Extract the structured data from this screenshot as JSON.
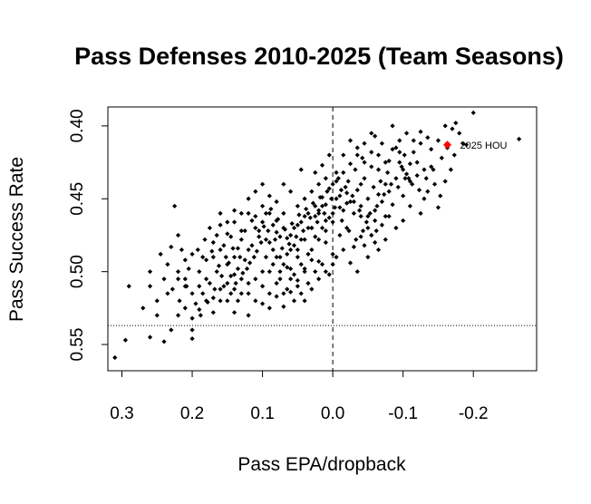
{
  "chart_data": {
    "type": "scatter",
    "title": "Pass Defenses 2010-2025 (Team Seasons)",
    "xlabel": "Pass EPA/dropback",
    "ylabel": "Pass Success Rate",
    "xlim": [
      0.32,
      -0.29
    ],
    "ylim": [
      0.568,
      0.387
    ],
    "xticks": [
      {
        "value": 0.3,
        "label": "0.3"
      },
      {
        "value": 0.2,
        "label": "0.2"
      },
      {
        "value": 0.1,
        "label": "0.1"
      },
      {
        "value": 0.0,
        "label": "0.0"
      },
      {
        "value": -0.1,
        "label": "-0.1"
      },
      {
        "value": -0.2,
        "label": "-0.2"
      }
    ],
    "yticks": [
      {
        "value": 0.4,
        "label": "0.40"
      },
      {
        "value": 0.45,
        "label": "0.45"
      },
      {
        "value": 0.5,
        "label": "0.50"
      },
      {
        "value": 0.55,
        "label": "0.55"
      }
    ],
    "reference_lines": {
      "vertical_x": 0.0,
      "horizontal_y": 0.537
    },
    "points": [
      [
        -0.2,
        0.391
      ],
      [
        -0.265,
        0.409
      ],
      [
        -0.175,
        0.398
      ],
      [
        -0.19,
        0.413
      ],
      [
        -0.14,
        0.416
      ],
      [
        -0.125,
        0.404
      ],
      [
        -0.115,
        0.41
      ],
      [
        -0.102,
        0.42
      ],
      [
        -0.13,
        0.43
      ],
      [
        -0.108,
        0.436
      ],
      [
        -0.098,
        0.428
      ],
      [
        -0.09,
        0.415
      ],
      [
        -0.085,
        0.4
      ],
      [
        -0.07,
        0.412
      ],
      [
        -0.06,
        0.407
      ],
      [
        -0.055,
        0.418
      ],
      [
        -0.045,
        0.425
      ],
      [
        -0.035,
        0.415
      ],
      [
        -0.025,
        0.41
      ],
      [
        -0.015,
        0.42
      ],
      [
        -0.005,
        0.432
      ],
      [
        0.005,
        0.42
      ],
      [
        0.015,
        0.427
      ],
      [
        0.025,
        0.432
      ],
      [
        0.045,
        0.43
      ],
      [
        -0.075,
        0.44
      ],
      [
        -0.065,
        0.447
      ],
      [
        -0.05,
        0.45
      ],
      [
        -0.04,
        0.44
      ],
      [
        -0.03,
        0.46
      ],
      [
        -0.02,
        0.453
      ],
      [
        -0.01,
        0.448
      ],
      [
        0.0,
        0.46
      ],
      [
        0.01,
        0.465
      ],
      [
        0.02,
        0.458
      ],
      [
        0.03,
        0.47
      ],
      [
        0.04,
        0.462
      ],
      [
        0.05,
        0.468
      ],
      [
        0.06,
        0.475
      ],
      [
        0.07,
        0.46
      ],
      [
        0.08,
        0.473
      ],
      [
        0.09,
        0.48
      ],
      [
        0.1,
        0.466
      ],
      [
        0.11,
        0.47
      ],
      [
        0.12,
        0.485
      ],
      [
        0.13,
        0.478
      ],
      [
        0.14,
        0.49
      ],
      [
        0.15,
        0.495
      ],
      [
        0.16,
        0.485
      ],
      [
        0.17,
        0.48
      ],
      [
        0.18,
        0.492
      ],
      [
        0.19,
        0.5
      ],
      [
        0.2,
        0.488
      ],
      [
        0.21,
        0.505
      ],
      [
        0.22,
        0.475
      ],
      [
        0.225,
        0.455
      ],
      [
        0.24,
        0.505
      ],
      [
        0.25,
        0.52
      ],
      [
        0.26,
        0.51
      ],
      [
        0.25,
        0.53
      ],
      [
        0.29,
        0.51
      ],
      [
        0.295,
        0.547
      ],
      [
        0.31,
        0.559
      ],
      [
        0.2,
        0.546
      ],
      [
        0.2,
        0.54
      ],
      [
        0.17,
        0.528
      ],
      [
        0.15,
        0.52
      ],
      [
        0.14,
        0.512
      ],
      [
        0.13,
        0.505
      ],
      [
        0.12,
        0.515
      ],
      [
        0.11,
        0.52
      ],
      [
        0.1,
        0.51
      ],
      [
        0.09,
        0.5
      ],
      [
        0.08,
        0.49
      ],
      [
        0.07,
        0.495
      ],
      [
        0.06,
        0.505
      ],
      [
        0.05,
        0.49
      ],
      [
        0.04,
        0.5
      ],
      [
        0.03,
        0.485
      ],
      [
        0.02,
        0.493
      ],
      [
        0.01,
        0.48
      ],
      [
        0.0,
        0.488
      ],
      [
        -0.01,
        0.475
      ],
      [
        -0.02,
        0.47
      ],
      [
        -0.03,
        0.483
      ],
      [
        -0.04,
        0.476
      ],
      [
        -0.05,
        0.49
      ],
      [
        -0.06,
        0.465
      ],
      [
        -0.07,
        0.452
      ],
      [
        -0.08,
        0.445
      ],
      [
        -0.09,
        0.436
      ],
      [
        -0.1,
        0.43
      ],
      [
        -0.11,
        0.438
      ],
      [
        -0.12,
        0.425
      ],
      [
        -0.135,
        0.445
      ],
      [
        -0.15,
        0.456
      ],
      [
        0.06,
        0.445
      ],
      [
        0.07,
        0.44
      ],
      [
        0.08,
        0.452
      ],
      [
        0.09,
        0.448
      ],
      [
        0.1,
        0.455
      ],
      [
        0.11,
        0.462
      ],
      [
        0.12,
        0.45
      ],
      [
        0.13,
        0.472
      ],
      [
        0.14,
        0.466
      ],
      [
        0.15,
        0.474
      ],
      [
        0.16,
        0.46
      ],
      [
        0.05,
        0.455
      ],
      [
        0.04,
        0.45
      ],
      [
        0.03,
        0.445
      ],
      [
        0.02,
        0.44
      ],
      [
        0.01,
        0.436
      ],
      [
        0.0,
        0.44
      ],
      [
        -0.005,
        0.45
      ],
      [
        0.015,
        0.455
      ],
      [
        0.025,
        0.462
      ],
      [
        0.035,
        0.47
      ],
      [
        0.045,
        0.478
      ],
      [
        0.055,
        0.482
      ],
      [
        0.065,
        0.488
      ],
      [
        0.075,
        0.476
      ],
      [
        0.085,
        0.468
      ],
      [
        0.095,
        0.46
      ],
      [
        0.105,
        0.476
      ],
      [
        0.115,
        0.482
      ],
      [
        0.125,
        0.492
      ],
      [
        0.135,
        0.498
      ],
      [
        0.145,
        0.503
      ],
      [
        0.155,
        0.51
      ],
      [
        0.165,
        0.5
      ],
      [
        0.175,
        0.508
      ],
      [
        0.185,
        0.515
      ],
      [
        0.195,
        0.522
      ],
      [
        0.205,
        0.498
      ],
      [
        0.215,
        0.485
      ],
      [
        0.235,
        0.495
      ],
      [
        0.245,
        0.488
      ],
      [
        0.185,
        0.49
      ],
      [
        0.175,
        0.47
      ],
      [
        0.165,
        0.475
      ],
      [
        0.155,
        0.482
      ],
      [
        0.145,
        0.476
      ],
      [
        0.135,
        0.484
      ],
      [
        0.125,
        0.472
      ],
      [
        0.115,
        0.465
      ],
      [
        0.105,
        0.472
      ],
      [
        0.095,
        0.478
      ],
      [
        0.085,
        0.485
      ],
      [
        0.075,
        0.49
      ],
      [
        0.065,
        0.497
      ],
      [
        0.055,
        0.502
      ],
      [
        0.045,
        0.495
      ],
      [
        0.035,
        0.488
      ],
      [
        0.025,
        0.476
      ],
      [
        0.015,
        0.47
      ],
      [
        0.005,
        0.463
      ],
      [
        -0.015,
        0.458
      ],
      [
        -0.025,
        0.452
      ],
      [
        -0.035,
        0.444
      ],
      [
        -0.045,
        0.436
      ],
      [
        -0.055,
        0.428
      ],
      [
        -0.065,
        0.42
      ],
      [
        -0.08,
        0.424
      ],
      [
        -0.095,
        0.418
      ],
      [
        -0.11,
        0.426
      ],
      [
        -0.12,
        0.434
      ],
      [
        -0.14,
        0.428
      ],
      [
        -0.155,
        0.422
      ],
      [
        -0.085,
        0.454
      ],
      [
        -0.075,
        0.462
      ],
      [
        -0.062,
        0.472
      ],
      [
        -0.048,
        0.466
      ],
      [
        -0.038,
        0.458
      ],
      [
        -0.028,
        0.448
      ],
      [
        -0.018,
        0.442
      ],
      [
        -0.008,
        0.436
      ],
      [
        0.008,
        0.445
      ],
      [
        0.018,
        0.449
      ],
      [
        0.028,
        0.453
      ],
      [
        0.038,
        0.457
      ],
      [
        0.048,
        0.461
      ],
      [
        0.058,
        0.467
      ],
      [
        0.068,
        0.471
      ],
      [
        0.078,
        0.464
      ],
      [
        0.088,
        0.457
      ],
      [
        0.098,
        0.469
      ],
      [
        0.108,
        0.486
      ],
      [
        0.118,
        0.494
      ],
      [
        0.128,
        0.501
      ],
      [
        0.138,
        0.508
      ],
      [
        0.148,
        0.494
      ],
      [
        0.158,
        0.503
      ],
      [
        0.168,
        0.512
      ],
      [
        0.178,
        0.521
      ],
      [
        0.188,
        0.53
      ],
      [
        0.208,
        0.51
      ],
      [
        0.218,
        0.52
      ],
      [
        0.228,
        0.512
      ],
      [
        0.075,
        0.505
      ],
      [
        0.065,
        0.512
      ],
      [
        0.055,
        0.52
      ],
      [
        0.045,
        0.515
      ],
      [
        0.035,
        0.508
      ],
      [
        0.025,
        0.5
      ],
      [
        0.015,
        0.495
      ],
      [
        0.005,
        0.502
      ],
      [
        -0.005,
        0.49
      ],
      [
        -0.015,
        0.485
      ],
      [
        -0.025,
        0.494
      ],
      [
        -0.035,
        0.5
      ],
      [
        -0.045,
        0.482
      ],
      [
        -0.055,
        0.475
      ],
      [
        -0.065,
        0.485
      ],
      [
        -0.075,
        0.478
      ],
      [
        -0.1,
        0.448
      ],
      [
        -0.11,
        0.455
      ],
      [
        -0.125,
        0.46
      ],
      [
        -0.13,
        0.45
      ],
      [
        -0.145,
        0.44
      ],
      [
        -0.16,
        0.438
      ],
      [
        -0.168,
        0.43
      ],
      [
        -0.18,
        0.405
      ],
      [
        -0.105,
        0.405
      ],
      [
        -0.095,
        0.41
      ],
      [
        -0.078,
        0.432
      ],
      [
        -0.068,
        0.438
      ],
      [
        -0.058,
        0.442
      ],
      [
        -0.042,
        0.422
      ],
      [
        -0.032,
        0.43
      ],
      [
        -0.022,
        0.438
      ],
      [
        -0.012,
        0.444
      ],
      [
        0.002,
        0.45
      ],
      [
        0.012,
        0.46
      ],
      [
        0.022,
        0.466
      ],
      [
        0.032,
        0.463
      ],
      [
        0.042,
        0.472
      ],
      [
        0.052,
        0.476
      ],
      [
        0.062,
        0.481
      ],
      [
        0.072,
        0.484
      ],
      [
        0.082,
        0.478
      ],
      [
        0.092,
        0.472
      ],
      [
        0.102,
        0.48
      ],
      [
        0.112,
        0.49
      ],
      [
        0.122,
        0.498
      ],
      [
        0.132,
        0.49
      ],
      [
        0.142,
        0.484
      ],
      [
        0.152,
        0.49
      ],
      [
        0.162,
        0.496
      ],
      [
        0.172,
        0.486
      ],
      [
        0.182,
        0.478
      ],
      [
        0.192,
        0.485
      ],
      [
        0.21,
        0.492
      ],
      [
        0.22,
        0.5
      ],
      [
        0.23,
        0.483
      ],
      [
        0.18,
        0.505
      ],
      [
        0.16,
        0.52
      ],
      [
        0.14,
        0.528
      ],
      [
        0.12,
        0.53
      ],
      [
        0.1,
        0.522
      ],
      [
        0.09,
        0.515
      ],
      [
        0.08,
        0.508
      ],
      [
        0.07,
        0.515
      ],
      [
        0.06,
        0.498
      ],
      [
        0.05,
        0.485
      ],
      [
        0.04,
        0.478
      ],
      [
        0.03,
        0.47
      ],
      [
        0.02,
        0.46
      ],
      [
        0.01,
        0.454
      ],
      [
        -0.003,
        0.456
      ],
      [
        -0.013,
        0.465
      ],
      [
        -0.023,
        0.472
      ],
      [
        -0.033,
        0.478
      ],
      [
        -0.043,
        0.472
      ],
      [
        -0.053,
        0.46
      ],
      [
        -0.063,
        0.455
      ],
      [
        -0.073,
        0.447
      ],
      [
        -0.083,
        0.44
      ],
      [
        -0.093,
        0.442
      ],
      [
        -0.103,
        0.436
      ],
      [
        -0.113,
        0.44
      ],
      [
        -0.123,
        0.444
      ],
      [
        -0.133,
        0.436
      ],
      [
        -0.143,
        0.43
      ],
      [
        -0.153,
        0.448
      ],
      [
        -0.163,
        0.415
      ],
      [
        -0.173,
        0.42
      ],
      [
        -0.185,
        0.412
      ],
      [
        -0.1,
        0.465
      ],
      [
        -0.09,
        0.47
      ],
      [
        -0.08,
        0.462
      ],
      [
        -0.07,
        0.468
      ],
      [
        -0.06,
        0.458
      ],
      [
        -0.05,
        0.462
      ],
      [
        -0.04,
        0.455
      ],
      [
        0.0,
        0.495
      ],
      [
        0.01,
        0.5
      ],
      [
        0.02,
        0.505
      ],
      [
        0.03,
        0.512
      ],
      [
        0.04,
        0.52
      ],
      [
        0.05,
        0.51
      ],
      [
        0.06,
        0.485
      ],
      [
        0.07,
        0.47
      ],
      [
        0.08,
        0.465
      ],
      [
        0.09,
        0.46
      ],
      [
        0.1,
        0.44
      ],
      [
        0.11,
        0.445
      ],
      [
        0.12,
        0.46
      ],
      [
        0.13,
        0.46
      ],
      [
        0.14,
        0.458
      ],
      [
        0.15,
        0.466
      ],
      [
        0.16,
        0.468
      ],
      [
        0.17,
        0.49
      ],
      [
        0.19,
        0.51
      ],
      [
        0.2,
        0.515
      ],
      [
        0.21,
        0.525
      ],
      [
        0.22,
        0.53
      ],
      [
        0.235,
        0.515
      ],
      [
        0.26,
        0.5
      ],
      [
        0.23,
        0.54
      ],
      [
        0.24,
        0.548
      ],
      [
        0.26,
        0.545
      ],
      [
        0.27,
        0.525
      ],
      [
        0.145,
        0.515
      ],
      [
        0.135,
        0.52
      ],
      [
        0.095,
        0.49
      ],
      [
        0.085,
        0.495
      ],
      [
        0.075,
        0.5
      ],
      [
        0.065,
        0.477
      ],
      [
        0.055,
        0.47
      ],
      [
        0.045,
        0.466
      ],
      [
        0.035,
        0.46
      ],
      [
        0.025,
        0.455
      ],
      [
        0.015,
        0.449
      ],
      [
        0.005,
        0.443
      ],
      [
        -0.005,
        0.438
      ],
      [
        -0.015,
        0.432
      ],
      [
        -0.025,
        0.426
      ],
      [
        -0.035,
        0.42
      ],
      [
        -0.045,
        0.412
      ],
      [
        -0.055,
        0.405
      ],
      [
        -0.065,
        0.43
      ],
      [
        -0.075,
        0.425
      ],
      [
        -0.085,
        0.416
      ],
      [
        -0.095,
        0.425
      ],
      [
        -0.105,
        0.433
      ],
      [
        -0.115,
        0.418
      ],
      [
        -0.125,
        0.412
      ],
      [
        -0.135,
        0.408
      ],
      [
        -0.15,
        0.41
      ],
      [
        -0.16,
        0.4
      ],
      [
        -0.17,
        0.402
      ],
      [
        -0.06,
        0.48
      ],
      [
        -0.05,
        0.47
      ],
      [
        -0.04,
        0.462
      ],
      [
        -0.03,
        0.452
      ],
      [
        -0.02,
        0.446
      ],
      [
        -0.01,
        0.456
      ],
      [
        0.0,
        0.466
      ],
      [
        0.01,
        0.472
      ],
      [
        0.02,
        0.478
      ],
      [
        0.03,
        0.492
      ],
      [
        0.04,
        0.498
      ],
      [
        0.05,
        0.506
      ],
      [
        0.06,
        0.514
      ],
      [
        0.07,
        0.524
      ],
      [
        0.08,
        0.517
      ],
      [
        0.09,
        0.525
      ],
      [
        0.1,
        0.5
      ],
      [
        0.11,
        0.505
      ],
      [
        0.12,
        0.508
      ],
      [
        0.13,
        0.515
      ],
      [
        0.14,
        0.502
      ],
      [
        0.15,
        0.508
      ],
      [
        0.16,
        0.512
      ],
      [
        0.17,
        0.518
      ],
      [
        0.18,
        0.52
      ],
      [
        0.19,
        0.526
      ],
      [
        0.2,
        0.532
      ],
      [
        0.21,
        0.51
      ],
      [
        0.22,
        0.505
      ]
    ],
    "highlight": {
      "label": "2025 HOU",
      "x": -0.163,
      "y": 0.413,
      "color": "#ff0000"
    },
    "point_color": "#000000"
  }
}
